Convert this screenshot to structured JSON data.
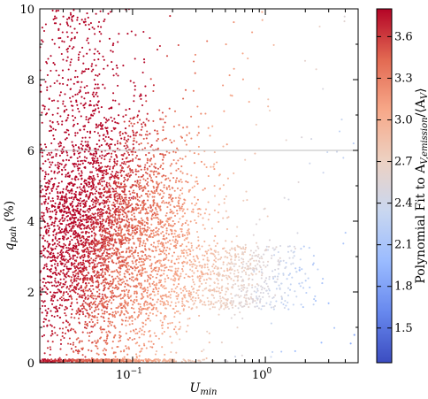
{
  "chart_data": {
    "type": "scatter",
    "title": "",
    "xlabel": "U_min",
    "ylabel": "q_pah (%)",
    "xscale": "log",
    "xlim": [
      0.02,
      5.0
    ],
    "ylim": [
      0,
      10
    ],
    "xticks": [
      {
        "value": 0.1,
        "base": "10",
        "exp": "−1"
      },
      {
        "value": 1.0,
        "base": "10",
        "exp": "0"
      }
    ],
    "yticks": [
      0,
      2,
      4,
      6,
      8,
      10
    ],
    "reference_line": {
      "y": 6,
      "color": "#bdbdbd"
    },
    "grid": false,
    "legend": "none",
    "colorbar": {
      "label": "Polynomial Fit to Av,emission/⟨Av⟩",
      "range": [
        1.25,
        3.8
      ],
      "ticks": [
        1.5,
        1.8,
        2.1,
        2.4,
        2.7,
        3.0,
        3.3,
        3.6
      ],
      "colormap": "coolwarm",
      "colormap_stops": [
        "#3b4cc0",
        "#6788ee",
        "#9abbff",
        "#c9d7f0",
        "#edd1c2",
        "#f7a889",
        "#e26952",
        "#b40426"
      ]
    }
  }
}
